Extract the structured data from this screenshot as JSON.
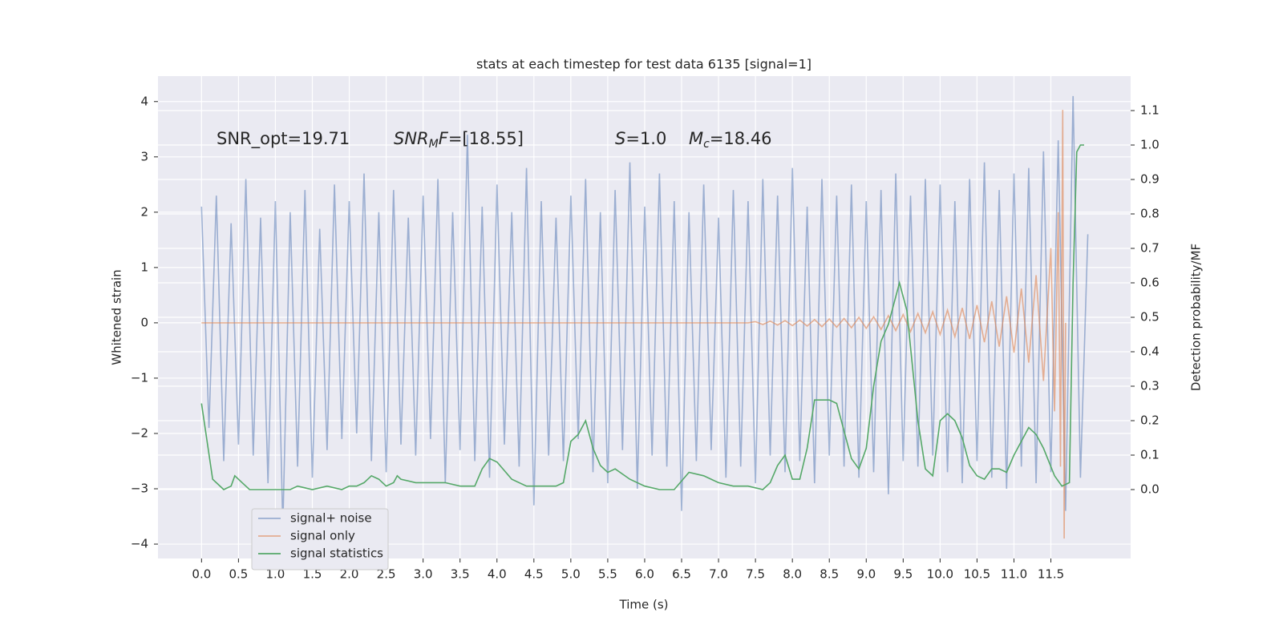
{
  "chart_data": {
    "type": "line",
    "title": "stats at each timestep for test data 6135 [signal=1]",
    "xlabel": "Time (s)",
    "ylabel": "Whitened strain",
    "y2label": "Detection probability/MF",
    "annotations": [
      [
        {
          "text": "SNR_opt=19.71",
          "style": "normal"
        }
      ],
      [
        {
          "text": "SNR",
          "style": "italic"
        },
        {
          "text": "M",
          "style": "italic-sub"
        },
        {
          "text": "F",
          "style": "italic"
        },
        {
          "text": "=[18.55]",
          "style": "normal"
        }
      ],
      [
        {
          "text": "S",
          "style": "italic"
        },
        {
          "text": "=1.0",
          "style": "normal"
        }
      ],
      [
        {
          "text": "M",
          "style": "italic"
        },
        {
          "text": "c",
          "style": "italic-sub"
        },
        {
          "text": "=18.46",
          "style": "normal"
        }
      ]
    ],
    "xlim": [
      -0.59,
      12.58
    ],
    "ylim": [
      -4.26,
      4.46
    ],
    "y2lim": [
      -0.2,
      1.2
    ],
    "xticks": [
      {
        "value": 0,
        "label": "0.0"
      },
      0.5,
      {
        "value": 1,
        "label": "1.0"
      },
      1.5,
      {
        "value": 2,
        "label": "2.0"
      },
      2.5,
      {
        "value": 3,
        "label": "3.0"
      },
      3.5,
      {
        "value": 4,
        "label": "4.0"
      },
      4.5,
      {
        "value": 5,
        "label": "5.0"
      },
      5.5,
      {
        "value": 6,
        "label": "6.0"
      },
      6.5,
      {
        "value": 7,
        "label": "7.0"
      },
      7.5,
      {
        "value": 8,
        "label": "8.0"
      },
      8.5,
      {
        "value": 9,
        "label": "9.0"
      },
      9.5,
      {
        "value": 10,
        "label": "10.0"
      },
      10.5,
      {
        "value": 11,
        "label": "11.0"
      },
      11.5
    ],
    "yticks": [
      {
        "value": -4,
        "label": "−4"
      },
      {
        "value": -3,
        "label": "−3"
      },
      {
        "value": -2,
        "label": "−2"
      },
      {
        "value": -1,
        "label": "−1"
      },
      0,
      1,
      2,
      3,
      4
    ],
    "y2ticks": [
      {
        "value": 0,
        "label": "0.0"
      },
      0.1,
      0.2,
      0.3,
      0.4,
      0.5,
      0.6,
      0.7,
      0.8,
      0.9,
      {
        "value": 1,
        "label": "1.0"
      },
      1.1
    ],
    "grid": true,
    "legend": "lower left",
    "series": [
      {
        "name": "signal+ noise",
        "color": "#4c72b0",
        "opacity": 0.5,
        "x": [
          0,
          0.1,
          0.2,
          0.3,
          0.4,
          0.5,
          0.6,
          0.7,
          0.8,
          0.9,
          1,
          1.1,
          1.2,
          1.3,
          1.4,
          1.5,
          1.6,
          1.7,
          1.8,
          1.9,
          2,
          2.1,
          2.2,
          2.3,
          2.4,
          2.5,
          2.6,
          2.7,
          2.8,
          2.9,
          3,
          3.1,
          3.2,
          3.3,
          3.4,
          3.5,
          3.6,
          3.7,
          3.8,
          3.9,
          4,
          4.1,
          4.2,
          4.3,
          4.4,
          4.5,
          4.6,
          4.7,
          4.8,
          4.9,
          5,
          5.1,
          5.2,
          5.3,
          5.4,
          5.5,
          5.6,
          5.7,
          5.8,
          5.9,
          6,
          6.1,
          6.2,
          6.3,
          6.4,
          6.5,
          6.6,
          6.7,
          6.8,
          6.9,
          7,
          7.1,
          7.2,
          7.3,
          7.4,
          7.5,
          7.6,
          7.7,
          7.8,
          7.9,
          8,
          8.1,
          8.2,
          8.3,
          8.4,
          8.5,
          8.6,
          8.7,
          8.8,
          8.9,
          9,
          9.1,
          9.2,
          9.3,
          9.4,
          9.5,
          9.6,
          9.7,
          9.8,
          9.9,
          10,
          10.1,
          10.2,
          10.3,
          10.4,
          10.5,
          10.6,
          10.7,
          10.8,
          10.9,
          11,
          11.1,
          11.2,
          11.3,
          11.4,
          11.5,
          11.6,
          11.7,
          11.8,
          11.9,
          12
        ],
        "values": [
          2.1,
          -1.9,
          2.3,
          -2.5,
          1.8,
          -2.2,
          2.6,
          -2.4,
          1.9,
          -2.9,
          2.2,
          -3.7,
          2.0,
          -2.6,
          2.4,
          -2.8,
          1.7,
          -2.3,
          2.5,
          -2.1,
          2.2,
          -2.0,
          2.7,
          -2.5,
          2.0,
          -2.7,
          2.4,
          -2.2,
          1.9,
          -2.4,
          2.3,
          -2.1,
          2.6,
          -2.9,
          2.0,
          -2.3,
          3.4,
          -2.5,
          2.1,
          -2.8,
          2.5,
          -2.2,
          2.0,
          -2.6,
          2.8,
          -3.3,
          2.2,
          -2.4,
          1.9,
          -2.5,
          2.3,
          -2.1,
          2.6,
          -2.7,
          2.0,
          -2.9,
          2.4,
          -2.3,
          2.9,
          -3.0,
          2.1,
          -2.4,
          2.7,
          -2.6,
          2.2,
          -3.4,
          2.0,
          -2.5,
          2.5,
          -2.3,
          1.9,
          -2.8,
          2.4,
          -2.6,
          2.2,
          -2.9,
          2.6,
          -2.4,
          2.3,
          -2.7,
          2.8,
          -2.5,
          2.1,
          -2.9,
          2.6,
          -2.4,
          2.3,
          -2.6,
          2.5,
          -2.8,
          2.2,
          -2.7,
          2.4,
          -3.1,
          2.7,
          -2.5,
          2.3,
          -2.6,
          2.6,
          -2.4,
          2.5,
          -2.7,
          2.2,
          -2.9,
          2.6,
          -2.5,
          2.9,
          -2.8,
          2.4,
          -3.0,
          2.7,
          -2.6,
          2.8,
          -2.9,
          3.1,
          -2.7,
          3.3,
          -3.4,
          4.1,
          -2.8,
          1.6
        ]
      },
      {
        "name": "signal only",
        "color": "#dd8452",
        "opacity": 0.6,
        "x": [
          0,
          7.4,
          7.5,
          7.6,
          7.7,
          7.8,
          7.9,
          8,
          8.1,
          8.2,
          8.3,
          8.4,
          8.5,
          8.6,
          8.7,
          8.8,
          8.9,
          9,
          9.1,
          9.2,
          9.3,
          9.4,
          9.5,
          9.6,
          9.7,
          9.8,
          9.9,
          10,
          10.1,
          10.2,
          10.3,
          10.4,
          10.5,
          10.6,
          10.7,
          10.8,
          10.9,
          11,
          11.1,
          11.2,
          11.3,
          11.4,
          11.5,
          11.55,
          11.6,
          11.63,
          11.66,
          11.68,
          11.7
        ],
        "values": [
          0,
          0,
          0.02,
          -0.03,
          0.03,
          -0.04,
          0.04,
          -0.05,
          0.05,
          -0.06,
          0.06,
          -0.07,
          0.07,
          -0.08,
          0.08,
          -0.09,
          0.1,
          -0.1,
          0.11,
          -0.12,
          0.13,
          -0.14,
          0.15,
          -0.16,
          0.17,
          -0.18,
          0.2,
          -0.21,
          0.23,
          -0.25,
          0.27,
          -0.29,
          0.32,
          -0.35,
          0.39,
          -0.43,
          0.48,
          -0.54,
          0.62,
          -0.72,
          0.86,
          -1.05,
          1.35,
          -1.6,
          2.0,
          -2.6,
          3.85,
          -3.9,
          0
        ]
      },
      {
        "name": "signal statistics",
        "color": "#55a868",
        "opacity": 1,
        "axis": "y2",
        "x": [
          0,
          0.15,
          0.3,
          0.4,
          0.45,
          0.55,
          0.65,
          0.8,
          1,
          1.2,
          1.3,
          1.5,
          1.7,
          1.9,
          2,
          2.1,
          2.2,
          2.3,
          2.4,
          2.5,
          2.6,
          2.65,
          2.7,
          2.9,
          3.1,
          3.3,
          3.5,
          3.7,
          3.8,
          3.9,
          4,
          4.2,
          4.4,
          4.6,
          4.8,
          4.9,
          5,
          5.1,
          5.2,
          5.3,
          5.4,
          5.5,
          5.6,
          5.8,
          6,
          6.2,
          6.4,
          6.6,
          6.8,
          7,
          7.2,
          7.4,
          7.6,
          7.7,
          7.8,
          7.9,
          8,
          8.1,
          8.2,
          8.3,
          8.5,
          8.6,
          8.8,
          8.9,
          9,
          9.1,
          9.2,
          9.3,
          9.45,
          9.55,
          9.7,
          9.8,
          9.9,
          10,
          10.1,
          10.2,
          10.3,
          10.4,
          10.5,
          10.6,
          10.7,
          10.8,
          10.9,
          11,
          11.2,
          11.3,
          11.4,
          11.55,
          11.65,
          11.75,
          11.8,
          11.85,
          11.9,
          11.95
        ],
        "values": [
          0.25,
          0.03,
          0,
          0.01,
          0.04,
          0.02,
          0,
          0,
          0,
          0,
          0.01,
          0,
          0.01,
          0,
          0.01,
          0.01,
          0.02,
          0.04,
          0.03,
          0.01,
          0.02,
          0.04,
          0.03,
          0.02,
          0.02,
          0.02,
          0.01,
          0.01,
          0.06,
          0.09,
          0.08,
          0.03,
          0.01,
          0.01,
          0.01,
          0.02,
          0.14,
          0.16,
          0.2,
          0.12,
          0.07,
          0.05,
          0.06,
          0.03,
          0.01,
          0,
          0,
          0.05,
          0.04,
          0.02,
          0.01,
          0.01,
          0,
          0.02,
          0.07,
          0.1,
          0.03,
          0.03,
          0.12,
          0.26,
          0.26,
          0.25,
          0.09,
          0.06,
          0.12,
          0.3,
          0.43,
          0.48,
          0.6,
          0.52,
          0.2,
          0.06,
          0.04,
          0.2,
          0.22,
          0.2,
          0.15,
          0.07,
          0.04,
          0.03,
          0.06,
          0.06,
          0.05,
          0.1,
          0.18,
          0.16,
          0.12,
          0.04,
          0.01,
          0.02,
          0.6,
          0.98,
          1.0,
          1.0
        ]
      }
    ]
  }
}
